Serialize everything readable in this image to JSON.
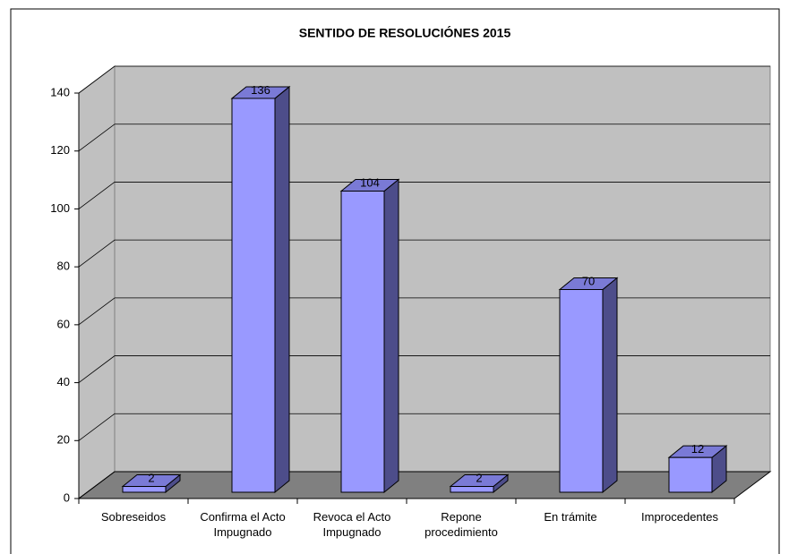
{
  "chart_data": {
    "type": "bar3d",
    "title": "SENTIDO DE RESOLUCIÓNES 2015",
    "categories": [
      "Sobreseidos",
      "Confirma el Acto Impugnado",
      "Revoca el Acto Impugnado",
      "Repone procedimiento",
      "En trámite",
      "Improcedentes"
    ],
    "values": [
      2,
      136,
      104,
      2,
      70,
      12
    ],
    "color": "#9999ff",
    "ylim": [
      0,
      140
    ],
    "yticks": [
      0,
      20,
      40,
      60,
      80,
      100,
      120,
      140
    ],
    "grid": true
  }
}
